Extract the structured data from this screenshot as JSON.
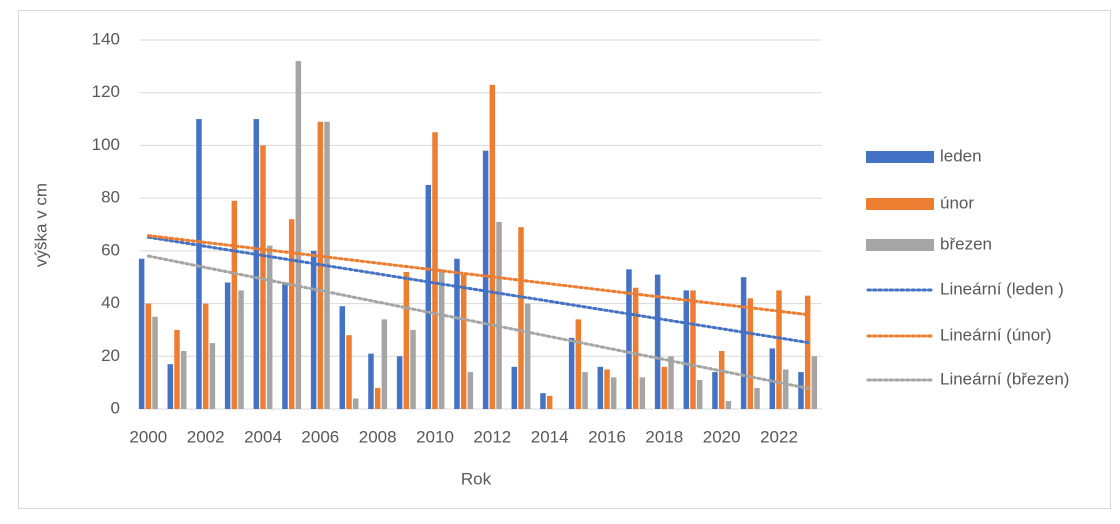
{
  "chart_data": {
    "type": "bar",
    "y_label": "výška v cm",
    "x_label": "Rok",
    "categories": [
      "2000",
      null,
      "2002",
      null,
      "2004",
      null,
      "2006",
      null,
      "2008",
      null,
      "2010",
      null,
      "2012",
      null,
      "2014",
      null,
      "2016",
      null,
      "2018",
      null,
      "2020",
      null,
      "2022",
      null
    ],
    "series": [
      {
        "name": "leden",
        "color": "#4472c4",
        "trendline": "Lineární (leden )",
        "values": [
          57,
          17,
          110,
          48,
          110,
          48,
          60,
          39,
          21,
          20,
          85,
          57,
          98,
          16,
          6,
          27,
          16,
          53,
          51,
          45,
          14,
          50,
          23,
          14
        ]
      },
      {
        "name": "únor",
        "color": "#ed7d31",
        "trendline": "Lineární (únor)",
        "values": [
          40,
          30,
          40,
          79,
          100,
          72,
          109,
          28,
          8,
          52,
          105,
          51,
          123,
          69,
          5,
          34,
          15,
          46,
          16,
          45,
          22,
          42,
          45,
          43
        ]
      },
      {
        "name": "březen",
        "color": "#a5a5a5",
        "trendline": "Lineární (březen)",
        "values": [
          35,
          22,
          25,
          45,
          62,
          132,
          109,
          4,
          34,
          30,
          53,
          14,
          71,
          40,
          0,
          14,
          12,
          12,
          20,
          11,
          3,
          8,
          15,
          20
        ]
      }
    ],
    "ylim": [
      0,
      140
    ],
    "yticks": [
      0,
      20,
      40,
      60,
      80,
      100,
      120,
      140
    ],
    "grid": true,
    "legend": "right"
  }
}
